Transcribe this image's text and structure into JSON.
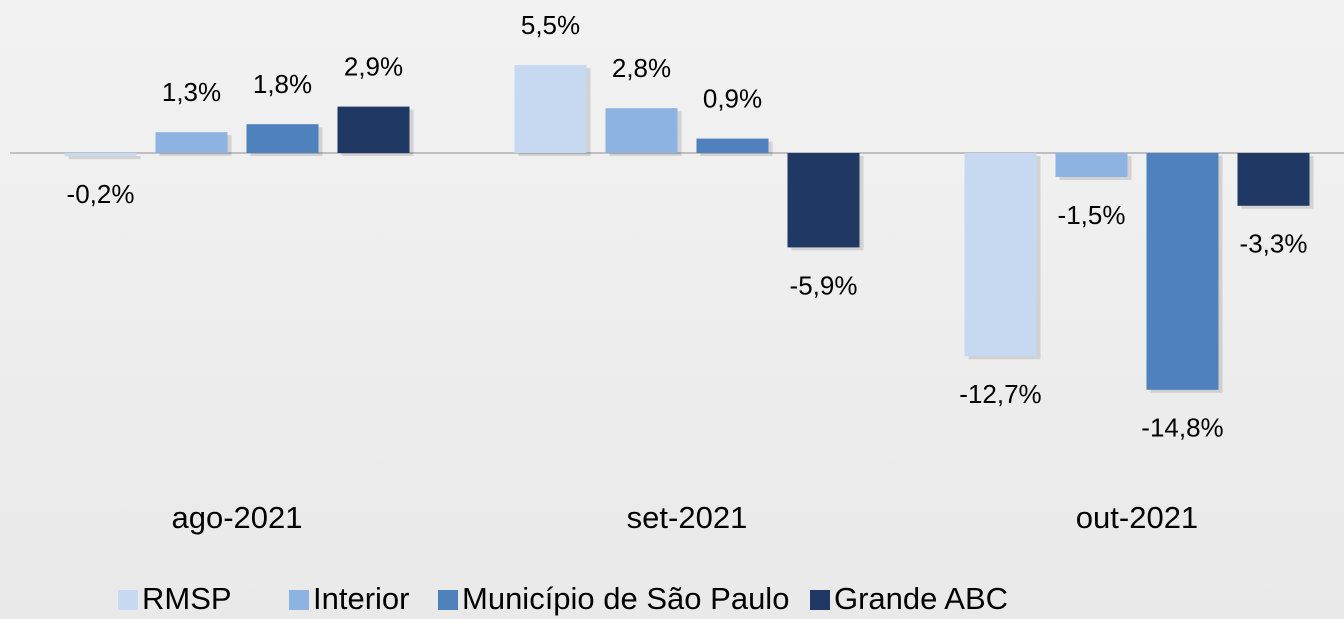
{
  "chart_data": {
    "type": "bar",
    "categories": [
      "ago-2021",
      "set-2021",
      "out-2021"
    ],
    "series": [
      {
        "name": "RMSP",
        "color": "#c6d9f1",
        "values": [
          -0.2,
          5.5,
          -12.7
        ],
        "value_labels": [
          "-0,2%",
          "5,5%",
          "-12,7%"
        ]
      },
      {
        "name": "Interior",
        "color": "#8db3e2",
        "values": [
          1.3,
          2.8,
          -1.5
        ],
        "value_labels": [
          "1,3%",
          "2,8%",
          "-1,5%"
        ]
      },
      {
        "name": "Município de São Paulo",
        "color": "#4f81bd",
        "values": [
          1.8,
          0.9,
          -14.8
        ],
        "value_labels": [
          "1,8%",
          "0,9%",
          "-14,8%"
        ]
      },
      {
        "name": "Grande ABC",
        "color": "#1f3864",
        "values": [
          2.9,
          -5.9,
          -3.3
        ],
        "value_labels": [
          "2,9%",
          "-5,9%",
          "-3,3%"
        ]
      }
    ]
  }
}
